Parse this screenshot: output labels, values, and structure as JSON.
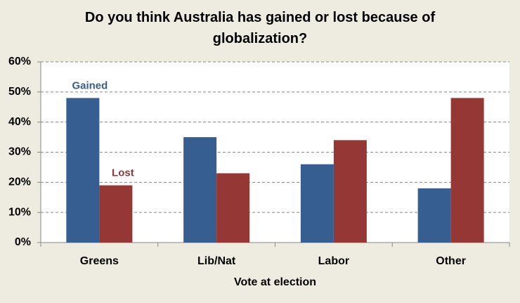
{
  "chart_data": {
    "type": "bar",
    "title": "Do you think Australia has gained or lost because of globalization?",
    "x_label": "Vote at election",
    "categories": [
      "Greens",
      "Lib/Nat",
      "Labor",
      "Other"
    ],
    "series": [
      {
        "name": "Gained",
        "color": "#375e91",
        "values": [
          48,
          35,
          26,
          18
        ]
      },
      {
        "name": "Lost",
        "color": "#953735",
        "values": [
          19,
          23,
          34,
          48
        ]
      }
    ],
    "ylim": [
      0,
      60
    ],
    "yticks": [
      {
        "value": 0,
        "label": "0%"
      },
      {
        "value": 10,
        "label": "10%"
      },
      {
        "value": 20,
        "label": "20%"
      },
      {
        "value": 30,
        "label": "30%"
      },
      {
        "value": 40,
        "label": "40%"
      },
      {
        "value": 50,
        "label": "50%"
      },
      {
        "value": 60,
        "label": "60%"
      }
    ],
    "grid": true
  }
}
